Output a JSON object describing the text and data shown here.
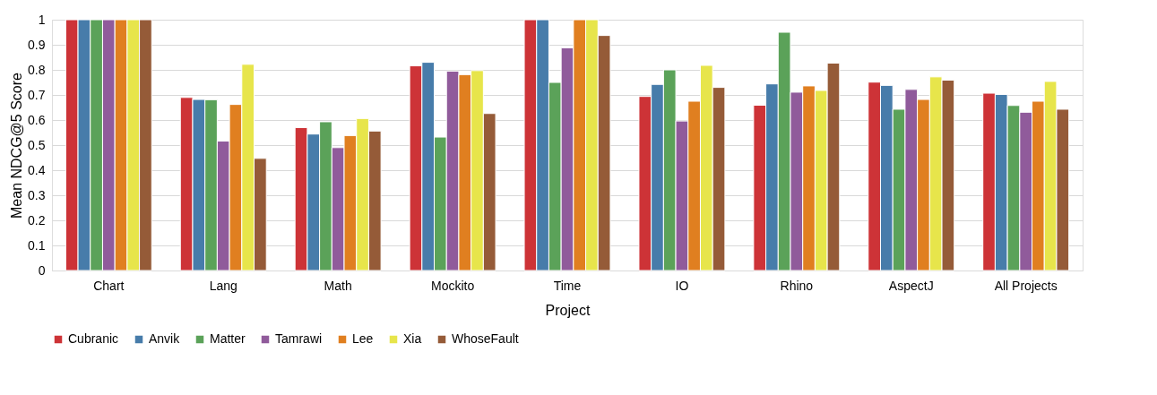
{
  "chart_data": {
    "type": "bar",
    "xlabel": "Project",
    "ylabel": "Mean NDCG@5 Score",
    "categories": [
      "Chart",
      "Lang",
      "Math",
      "Mockito",
      "Time",
      "IO",
      "Rhino",
      "AspectJ",
      "All Projects"
    ],
    "series": [
      {
        "name": "Cubranic",
        "color": "#cd3337",
        "values": [
          1,
          0.69,
          0.57,
          0.816,
          1,
          0.694,
          0.659,
          0.751,
          0.707
        ]
      },
      {
        "name": "Anvik",
        "color": "#477caa",
        "values": [
          1,
          0.682,
          0.544,
          0.83,
          1,
          0.742,
          0.744,
          0.738,
          0.702
        ]
      },
      {
        "name": "Matter",
        "color": "#5ba259",
        "values": [
          1,
          0.681,
          0.593,
          0.532,
          0.75,
          0.8,
          0.95,
          0.643,
          0.658
        ]
      },
      {
        "name": "Tamrawi",
        "color": "#905b9b",
        "values": [
          1,
          0.516,
          0.49,
          0.795,
          0.888,
          0.596,
          0.711,
          0.722,
          0.631
        ]
      },
      {
        "name": "Lee",
        "color": "#e07f20",
        "values": [
          1,
          0.662,
          0.538,
          0.781,
          1,
          0.675,
          0.736,
          0.682,
          0.675
        ]
      },
      {
        "name": "Xia",
        "color": "#e7e54b",
        "values": [
          1,
          0.822,
          0.606,
          0.797,
          1,
          0.818,
          0.718,
          0.772,
          0.754
        ]
      },
      {
        "name": "WhoseFault",
        "color": "#955b38",
        "values": [
          1,
          0.447,
          0.556,
          0.626,
          0.937,
          0.73,
          0.827,
          0.759,
          0.643
        ]
      }
    ],
    "ylim": [
      0,
      1
    ],
    "yticks": [
      0,
      0.1,
      0.2,
      0.3,
      0.4,
      0.5,
      0.6,
      0.7,
      0.8,
      0.9,
      1
    ],
    "grid": "y",
    "legend": "bottom"
  }
}
